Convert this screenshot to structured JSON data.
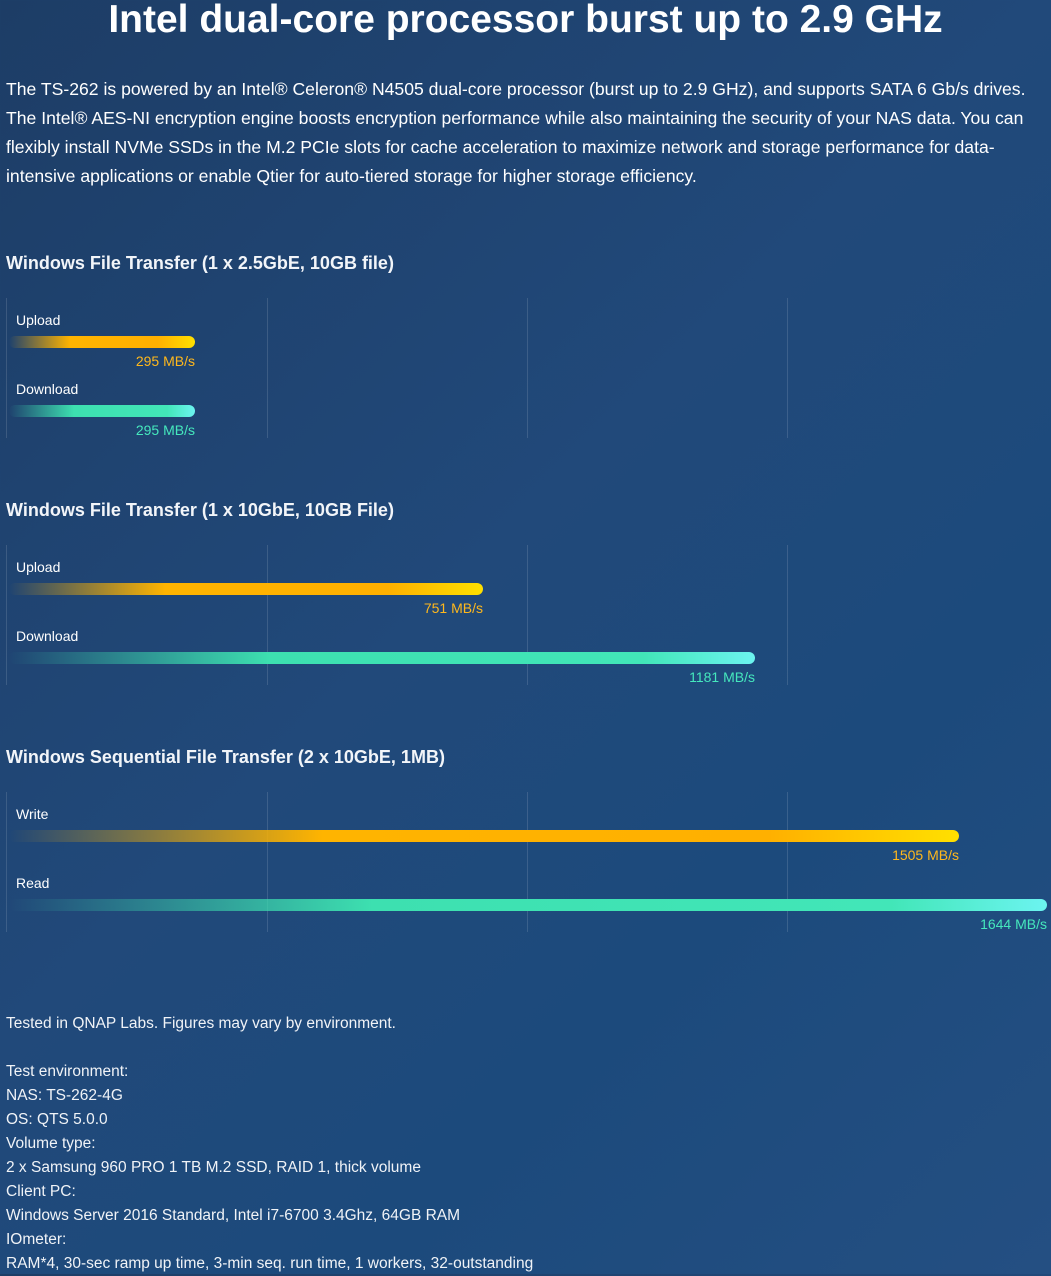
{
  "headline": "Intel dual-core processor burst up to 2.9 GHz",
  "intro": "The TS-262 is powered by an Intel® Celeron® N4505 dual-core processor (burst up to 2.9 GHz), and supports SATA 6 Gb/s drives. The Intel® AES-NI encryption engine boosts encryption performance while also maintaining the security of your NAS data. You can flexibly install NVMe SSDs in the M.2 PCIe slots for cache acceleration to maximize network and storage performance for data-intensive applications or enable Qtier for auto-tiered storage for higher storage efficiency.",
  "colors": {
    "upload": "#ffb400",
    "download": "#42e6b8",
    "background": "#1f4576"
  },
  "chart_data": [
    {
      "type": "bar",
      "orientation": "horizontal",
      "title": "Windows File Transfer (1 x 2.5GbE, 10GB file)",
      "unit": "MB/s",
      "xlim": [
        0,
        1644
      ],
      "grid": true,
      "bars": [
        {
          "label": "Upload",
          "value": 295,
          "value_label": "295 MB/s",
          "color": "upload"
        },
        {
          "label": "Download",
          "value": 295,
          "value_label": "295 MB/s",
          "color": "download"
        }
      ]
    },
    {
      "type": "bar",
      "orientation": "horizontal",
      "title": "Windows File Transfer (1 x 10GbE, 10GB File)",
      "unit": "MB/s",
      "xlim": [
        0,
        1644
      ],
      "grid": true,
      "bars": [
        {
          "label": "Upload",
          "value": 751,
          "value_label": "751 MB/s",
          "color": "upload"
        },
        {
          "label": "Download",
          "value": 1181,
          "value_label": "1181 MB/s",
          "color": "download"
        }
      ]
    },
    {
      "type": "bar",
      "orientation": "horizontal",
      "title": "Windows Sequential File Transfer (2 x 10GbE, 1MB)",
      "unit": "MB/s",
      "xlim": [
        0,
        1644
      ],
      "grid": true,
      "bars": [
        {
          "label": "Write",
          "value": 1505,
          "value_label": "1505 MB/s",
          "color": "upload"
        },
        {
          "label": "Read",
          "value": 1644,
          "value_label": "1644 MB/s",
          "color": "download"
        }
      ]
    }
  ],
  "notes": {
    "disclaimer": "Tested in QNAP Labs. Figures may vary by environment.",
    "lines": [
      "Test environment:",
      "NAS: TS-262-4G",
      "OS: QTS 5.0.0",
      "Volume type:",
      "2 x Samsung 960 PRO 1 TB M.2 SSD, RAID 1, thick volume",
      "Client PC:",
      "Windows Server 2016 Standard, Intel i7-6700 3.4Ghz, 64GB RAM",
      "IOmeter:",
      "RAM*4, 30-sec ramp up time, 3-min seq. run time, 1 workers, 32-outstanding"
    ]
  }
}
